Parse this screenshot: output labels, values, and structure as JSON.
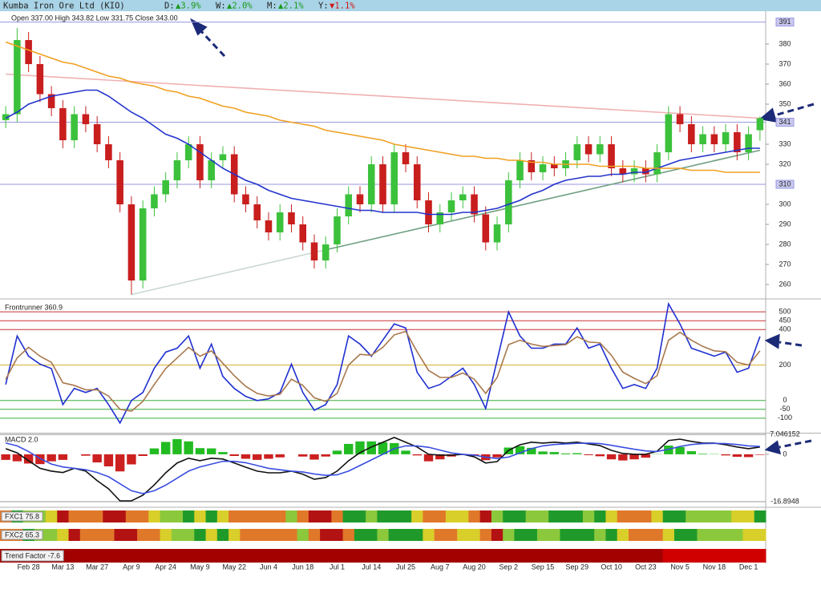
{
  "header": {
    "title": "Kumba Iron Ore Ltd (KIO)",
    "changes": [
      {
        "label": "D:",
        "value": "▲3.9%",
        "color": "#1a9a1a"
      },
      {
        "label": "W:",
        "value": "▲2.0%",
        "color": "#1a9a1a"
      },
      {
        "label": "M:",
        "value": "▲2.1%",
        "color": "#1a9a1a"
      },
      {
        "label": "Y:",
        "value": "▼1.1%",
        "color": "#d01818"
      }
    ]
  },
  "chart_data": [
    {
      "type": "candlestick",
      "title": "Open 337.00 High 343.82 Low 331.75 Close 343.00",
      "categories": [
        null,
        null,
        "Feb 28",
        null,
        null,
        "Mar 13",
        null,
        null,
        "Mar 27",
        null,
        null,
        "Apr 9",
        null,
        null,
        "Apr 24",
        null,
        null,
        "May 9",
        null,
        null,
        "May 22",
        null,
        null,
        "Jun 4",
        null,
        null,
        "Jun 18",
        null,
        null,
        "Jul 1",
        null,
        null,
        "Jul 14",
        null,
        null,
        "Jul 25",
        null,
        null,
        "Aug 7",
        null,
        null,
        "Aug 20",
        null,
        null,
        "Sep 2",
        null,
        null,
        "Sep 15",
        null,
        null,
        "Sep 29",
        null,
        null,
        "Oct 10",
        null,
        null,
        "Oct 23",
        null,
        null,
        "Nov 5",
        null,
        null,
        "Nov 18",
        null,
        null,
        "Dec 1",
        null
      ],
      "open": [
        342,
        345,
        382,
        370,
        355,
        348,
        332,
        345,
        340,
        330,
        322,
        300,
        262,
        298,
        305,
        312,
        322,
        330,
        312,
        322,
        325,
        305,
        300,
        292,
        286,
        296,
        290,
        281,
        272,
        280,
        294,
        305,
        300,
        320,
        300,
        326,
        320,
        302,
        290,
        296,
        302,
        305,
        295,
        281,
        290,
        312,
        322,
        316,
        320,
        318,
        322,
        330,
        325,
        330,
        318,
        315,
        318,
        315,
        326,
        345,
        340,
        330,
        335,
        330,
        336,
        326,
        337
      ],
      "high": [
        349,
        388,
        386,
        374,
        359,
        352,
        349,
        349,
        344,
        334,
        326,
        304,
        302,
        309,
        316,
        326,
        334,
        334,
        326,
        329,
        329,
        309,
        304,
        296,
        300,
        300,
        294,
        285,
        284,
        298,
        309,
        309,
        324,
        324,
        330,
        330,
        324,
        306,
        300,
        306,
        309,
        309,
        299,
        294,
        316,
        326,
        326,
        324,
        324,
        326,
        334,
        334,
        334,
        334,
        322,
        322,
        322,
        330,
        349,
        349,
        344,
        339,
        339,
        340,
        340,
        339,
        343.82
      ],
      "low": [
        338,
        341,
        366,
        351,
        344,
        328,
        328,
        336,
        326,
        318,
        296,
        255,
        258,
        294,
        301,
        308,
        318,
        308,
        308,
        318,
        301,
        296,
        288,
        282,
        282,
        286,
        277,
        268,
        268,
        276,
        290,
        296,
        296,
        296,
        296,
        316,
        298,
        286,
        286,
        292,
        298,
        291,
        277,
        277,
        286,
        308,
        312,
        312,
        314,
        314,
        318,
        321,
        321,
        314,
        311,
        311,
        311,
        311,
        322,
        336,
        326,
        326,
        326,
        326,
        322,
        322,
        331.75
      ],
      "close": [
        345,
        382,
        370,
        355,
        348,
        332,
        345,
        340,
        330,
        322,
        300,
        262,
        298,
        305,
        312,
        322,
        330,
        312,
        322,
        325,
        305,
        300,
        292,
        286,
        296,
        290,
        281,
        272,
        280,
        294,
        305,
        300,
        320,
        300,
        326,
        320,
        302,
        290,
        296,
        302,
        305,
        295,
        281,
        290,
        312,
        322,
        316,
        320,
        318,
        322,
        330,
        325,
        330,
        318,
        315,
        318,
        315,
        326,
        345,
        340,
        330,
        335,
        330,
        336,
        326,
        335,
        343
      ],
      "up_color": "#3cc13c",
      "down_color": "#c81e1e",
      "series": [
        {
          "color": "#2233cc",
          "values": [
            343,
            346,
            350,
            352,
            354,
            355,
            356,
            357,
            357,
            354,
            350,
            346,
            343,
            339,
            335,
            333,
            330,
            326,
            322,
            318,
            315,
            312,
            310,
            307,
            305,
            303,
            302,
            301,
            300,
            299,
            298,
            297,
            297,
            296,
            296,
            296,
            296,
            295,
            295,
            295,
            296,
            296,
            297,
            298,
            300,
            302,
            305,
            307,
            310,
            312,
            313,
            314,
            314,
            315,
            315,
            316,
            316,
            318,
            320,
            322,
            323,
            324,
            325,
            326,
            327,
            328,
            328
          ]
        },
        {
          "color": "#f0a020",
          "values": [
            381,
            379,
            377,
            375,
            373,
            371,
            370,
            368,
            366,
            364,
            363,
            361,
            360,
            359,
            357,
            356,
            354,
            353,
            351,
            349,
            348,
            346,
            345,
            344,
            342,
            341,
            340,
            339,
            337,
            336,
            335,
            334,
            333,
            332,
            330,
            329,
            328,
            327,
            326,
            325,
            324,
            324,
            323,
            323,
            322,
            322,
            321,
            321,
            320,
            320,
            320,
            320,
            319,
            319,
            319,
            319,
            318,
            318,
            318,
            318,
            317,
            317,
            317,
            316,
            316,
            316,
            316
          ]
        }
      ],
      "lines": [
        {
          "color": "#f0b0b0",
          "x": [
            0,
            66
          ],
          "values": [
            365,
            343
          ]
        },
        {
          "color": "#c8d8d0",
          "x": [
            11,
            28
          ],
          "values": [
            255,
            277.3
          ]
        },
        {
          "color": "#6f9f80",
          "x": [
            28,
            66
          ],
          "values": [
            277.3,
            327
          ]
        }
      ],
      "levels": [
        391,
        341,
        310
      ],
      "level_color": "#9a9ae0",
      "ylim": [
        254,
        394.8
      ],
      "yticks": [
        260,
        270,
        280,
        290,
        300,
        320,
        330,
        350,
        360,
        370,
        380
      ]
    },
    {
      "type": "line",
      "title": "Frontrunner 360.9",
      "series": [
        {
          "color": "#1f2fd0",
          "values": [
            90,
            364,
            250,
            205,
            180,
            -23,
            68,
            45,
            68,
            -23,
            -127,
            0,
            45,
            182,
            273,
            295,
            364,
            182,
            318,
            136,
            68,
            23,
            0,
            9,
            45,
            205,
            45,
            -55,
            -23,
            90,
            364,
            318,
            250,
            341,
            432,
            409,
            159,
            68,
            90,
            136,
            182,
            90,
            -45,
            227,
            500,
            364,
            295,
            295,
            318,
            318,
            409,
            295,
            318,
            182,
            68,
            90,
            68,
            182,
            545,
            432,
            295,
            273,
            250,
            273,
            159,
            182,
            360.9
          ]
        },
        {
          "color": "#a8784c",
          "values": [
            120,
            240,
            300,
            250,
            215,
            100,
            85,
            60,
            60,
            25,
            -50,
            -60,
            -5,
            90,
            180,
            240,
            300,
            250,
            280,
            210,
            140,
            80,
            40,
            25,
            35,
            120,
            85,
            15,
            -5,
            40,
            200,
            260,
            255,
            300,
            370,
            390,
            275,
            170,
            130,
            130,
            155,
            120,
            40,
            130,
            315,
            340,
            318,
            305,
            310,
            315,
            360,
            330,
            325,
            255,
            160,
            125,
            95,
            140,
            340,
            385,
            340,
            305,
            280,
            275,
            215,
            200,
            280
          ]
        }
      ],
      "ylim": [
        -182,
        564
      ],
      "yticks": [
        -100,
        -50,
        0,
        200,
        400,
        450,
        500
      ],
      "grid_colors": [
        "#3cae3c",
        "#3cae3c",
        "#3cae3c",
        "#d8b030",
        "#c83232",
        "#c83232",
        "#c83232"
      ]
    },
    {
      "type": "bar",
      "title": "MACD 2.0",
      "values": [
        -2,
        -2.5,
        -3.3,
        -3.5,
        -2.5,
        -2,
        0,
        -0.5,
        -2.9,
        -4.3,
        -6.1,
        -3.6,
        -0.6,
        2.1,
        4.4,
        5.4,
        4.6,
        2.2,
        2.1,
        0.8,
        -0.6,
        -1.6,
        -2,
        -1.6,
        -1.1,
        0,
        -0.8,
        -1.9,
        -0.8,
        1.3,
        3.7,
        4.6,
        4.6,
        4.3,
        4,
        1.3,
        -0.4,
        -2.5,
        -1.8,
        -0.8,
        0,
        -0.6,
        -2.1,
        -1.1,
        2.4,
        2.9,
        2.3,
        1,
        0.8,
        0.3,
        0.4,
        -0.3,
        -0.7,
        -1.8,
        -2.2,
        -1.8,
        -1.2,
        0.1,
        3.1,
        2.6,
        1.1,
        0.2,
        0.1,
        -0.4,
        -0.9,
        -1,
        -0.2
      ],
      "up_color": "#22bb22",
      "down_color": "#cc2020",
      "series": [
        {
          "color": "#111111",
          "values": [
            2,
            0.5,
            -2.3,
            -5,
            -6,
            -6.5,
            -5,
            -6,
            -9.4,
            -12.3,
            -16.6,
            -16.6,
            -14.6,
            -10.9,
            -6.6,
            -3.1,
            -1.4,
            -2.3,
            -1.4,
            -1.7,
            -3.1,
            -4.6,
            -6,
            -6.6,
            -6.6,
            -6,
            -7.1,
            -8.9,
            -8.3,
            -6,
            -2.3,
            0.6,
            2.6,
            4.3,
            6,
            4.3,
            2.6,
            0,
            -0.3,
            -0.3,
            0,
            -0.9,
            -3.1,
            -2.6,
            1.4,
            3.4,
            4.3,
            4,
            4.3,
            4,
            4.3,
            3.7,
            3.1,
            1.4,
            0.3,
            0,
            0,
            1.1,
            4.9,
            5.4,
            4.6,
            4,
            4,
            3.4,
            2.6,
            2,
            2.6
          ]
        },
        {
          "color": "#3a4ee0",
          "values": [
            4,
            3,
            1,
            -1.5,
            -3.5,
            -4.5,
            -5,
            -5.5,
            -6.5,
            -8,
            -10.5,
            -13,
            -14,
            -13,
            -11,
            -8.5,
            -6,
            -4.5,
            -3.5,
            -2.5,
            -2.5,
            -3,
            -4,
            -5,
            -5.5,
            -6,
            -6.3,
            -7,
            -7.5,
            -7.3,
            -6,
            -4,
            -2,
            0,
            2,
            3,
            3,
            2.5,
            1.5,
            0.5,
            0,
            -0.3,
            -1,
            -1.5,
            -1,
            0.5,
            2,
            3,
            3.5,
            3.7,
            3.9,
            4,
            3.8,
            3.2,
            2.5,
            1.8,
            1.2,
            1,
            1.8,
            2.8,
            3.5,
            3.8,
            3.9,
            3.8,
            3.5,
            3,
            2.8
          ]
        }
      ],
      "ylim": [
        -18.6,
        7.4
      ],
      "yticks": [
        -16.8948,
        0,
        7.046152
      ],
      "grid_colors": [
        "#999999",
        null,
        "#999999"
      ]
    },
    {
      "type": "heatmap",
      "title": "FXC1 75.8",
      "colors": [
        "#e0782a",
        "#1f9a2a",
        "#8cc83c",
        "#8cc83c",
        "#d9cf2a",
        "#b31212",
        "#e0782a",
        "#e0782a",
        "#e0782a",
        "#b31212",
        "#b31212",
        "#e0782a",
        "#e0782a",
        "#d9cf2a",
        "#8cc83c",
        "#8cc83c",
        "#1f9a2a",
        "#d9cf2a",
        "#1f9a2a",
        "#d9cf2a",
        "#e0782a",
        "#e0782a",
        "#e0782a",
        "#e0782a",
        "#e0782a",
        "#8cc83c",
        "#e0782a",
        "#b31212",
        "#b31212",
        "#e0782a",
        "#1f9a2a",
        "#1f9a2a",
        "#8cc83c",
        "#1f9a2a",
        "#1f9a2a",
        "#1f9a2a",
        "#d9cf2a",
        "#e0782a",
        "#e0782a",
        "#d9cf2a",
        "#d9cf2a",
        "#e0782a",
        "#b31212",
        "#8cc83c",
        "#1f9a2a",
        "#1f9a2a",
        "#8cc83c",
        "#8cc83c",
        "#1f9a2a",
        "#1f9a2a",
        "#1f9a2a",
        "#8cc83c",
        "#1f9a2a",
        "#d9cf2a",
        "#e0782a",
        "#e0782a",
        "#e0782a",
        "#d9cf2a",
        "#1f9a2a",
        "#1f9a2a",
        "#8cc83c",
        "#8cc83c",
        "#8cc83c",
        "#8cc83c",
        "#d9cf2a",
        "#d9cf2a",
        "#1f9a2a"
      ]
    },
    {
      "type": "heatmap",
      "title": "FXC2 65.3",
      "colors": [
        "#e0782a",
        "#e0782a",
        "#1f9a2a",
        "#8cc83c",
        "#8cc83c",
        "#d9cf2a",
        "#b31212",
        "#e0782a",
        "#e0782a",
        "#e0782a",
        "#b31212",
        "#b31212",
        "#e0782a",
        "#e0782a",
        "#d9cf2a",
        "#8cc83c",
        "#8cc83c",
        "#1f9a2a",
        "#d9cf2a",
        "#1f9a2a",
        "#d9cf2a",
        "#e0782a",
        "#e0782a",
        "#e0782a",
        "#e0782a",
        "#e0782a",
        "#8cc83c",
        "#e0782a",
        "#b31212",
        "#b31212",
        "#e0782a",
        "#1f9a2a",
        "#1f9a2a",
        "#8cc83c",
        "#1f9a2a",
        "#1f9a2a",
        "#1f9a2a",
        "#d9cf2a",
        "#e0782a",
        "#e0782a",
        "#d9cf2a",
        "#d9cf2a",
        "#e0782a",
        "#b31212",
        "#8cc83c",
        "#1f9a2a",
        "#1f9a2a",
        "#8cc83c",
        "#8cc83c",
        "#1f9a2a",
        "#1f9a2a",
        "#1f9a2a",
        "#8cc83c",
        "#1f9a2a",
        "#d9cf2a",
        "#e0782a",
        "#e0782a",
        "#e0782a",
        "#d9cf2a",
        "#1f9a2a",
        "#1f9a2a",
        "#8cc83c",
        "#8cc83c",
        "#8cc83c",
        "#8cc83c",
        "#d9cf2a",
        "#d9cf2a"
      ]
    },
    {
      "type": "heatmap",
      "title": "Trend Factor -7.6",
      "colors": [
        "#a30000",
        "#a30000",
        "#a30000",
        "#a30000",
        "#a30000",
        "#a30000",
        "#a30000",
        "#a30000",
        "#a30000",
        "#a30000",
        "#a30000",
        "#a30000",
        "#a30000",
        "#a30000",
        "#a30000",
        "#a30000",
        "#a30000",
        "#a30000",
        "#a30000",
        "#a30000",
        "#a30000",
        "#a30000",
        "#a30000",
        "#a30000",
        "#a30000",
        "#a30000",
        "#a30000",
        "#a30000",
        "#a30000",
        "#a30000",
        "#a30000",
        "#a30000",
        "#a30000",
        "#a30000",
        "#a30000",
        "#a30000",
        "#a30000",
        "#a30000",
        "#a30000",
        "#a30000",
        "#a30000",
        "#a30000",
        "#a30000",
        "#a30000",
        "#a30000",
        "#a30000",
        "#a30000",
        "#a30000",
        "#a30000",
        "#a30000",
        "#a30000",
        "#a30000",
        "#a30000",
        "#a30000",
        "#a30000",
        "#a30000",
        "#a30000",
        "#a30000",
        "#d10000",
        "#d10000",
        "#d10000",
        "#d10000",
        "#d10000",
        "#d10000",
        "#d10000",
        "#d10000",
        "#d10000"
      ]
    }
  ]
}
